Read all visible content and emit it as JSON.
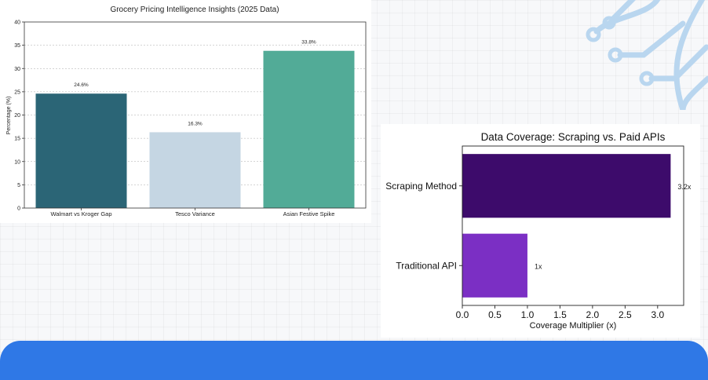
{
  "chart_data": [
    {
      "type": "bar",
      "title": "Grocery Pricing Intelligence Insights (2025 Data)",
      "xlabel": "",
      "ylabel": "Percentage (%)",
      "categories": [
        "Walmart vs Kroger Gap",
        "Tesco Variance",
        "Asian Festive Spike"
      ],
      "values": [
        24.6,
        16.3,
        33.8
      ],
      "value_labels": [
        "24.6%",
        "16.3%",
        "33.8%"
      ],
      "colors": [
        "#2b6576",
        "#c5d6e3",
        "#52ab97"
      ],
      "ylim": [
        0,
        40
      ],
      "yticks": [
        "0",
        "5",
        "10",
        "15",
        "20",
        "25",
        "30",
        "35",
        "40"
      ],
      "grid": "horizontal dashed"
    },
    {
      "type": "bar",
      "orientation": "horizontal",
      "title": "Data Coverage: Scraping vs. Paid APIs",
      "xlabel": "Coverage Multiplier (x)",
      "ylabel": "",
      "categories": [
        "Scraping Method",
        "Traditional API"
      ],
      "values": [
        3.2,
        1.0
      ],
      "value_labels": [
        "3.2x",
        "1x"
      ],
      "colors": [
        "#3d0b6b",
        "#7b2fc4"
      ],
      "xlim": [
        0,
        3.4
      ],
      "xticks": [
        "0.0",
        "0.5",
        "1.0",
        "1.5",
        "2.0",
        "2.5",
        "3.0"
      ],
      "grid": "none"
    }
  ]
}
